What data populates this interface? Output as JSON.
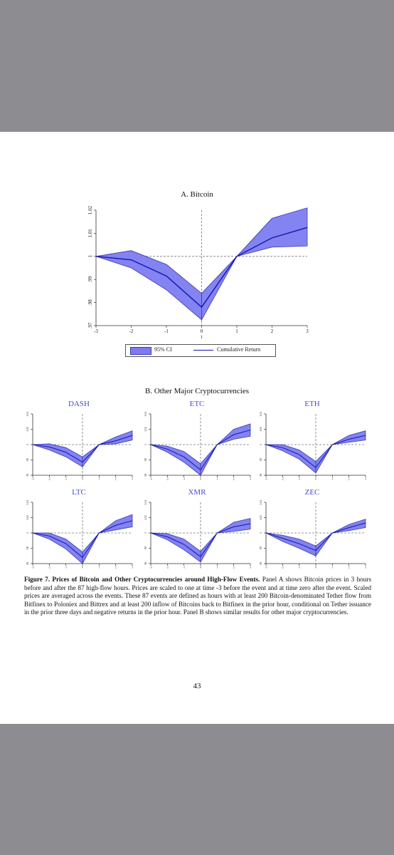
{
  "panel_a": {
    "title": "A. Bitcoin",
    "xlabel": "t",
    "legend": {
      "ci": "95% CI",
      "line": "Cumulative Return"
    }
  },
  "panel_b": {
    "title": "B. Other Major Cryptocurrencies"
  },
  "caption": {
    "bold": "Figure 7. Prices of Bitcoin and Other Cryptocurrencies around High-Flow Events.",
    "text": " Panel A shows Bitcoin prices in 3 hours before and after the 87 high-flow hours. Prices are scaled to one at time -3 before the event and at time zero after the event. Scaled prices are averaged across the events. These 87 events are defined as hours with at least 200 Bitcoin-denominated Tether flow from Bitfinex to Poloniex and Bittrex and at least 200 inflow of Bitcoins back to Bitfinex in the prior hour, conditional on Tether issuance in the prior three days and negative returns in the prior hour. Panel B shows similar results for other major cryptocurrencies."
  },
  "page_number": "43",
  "colors": {
    "band": "#7c7cf0",
    "band_edge": "#3a3ab0",
    "line": "#1414b4",
    "ref": "#777777"
  },
  "chart_data": [
    {
      "type": "area",
      "title": "A. Bitcoin",
      "xlabel": "t",
      "x": [
        -3,
        -2,
        -1,
        0,
        1,
        2,
        3
      ],
      "xlim": [
        -3,
        3
      ],
      "ylim": [
        0.97,
        1.02
      ],
      "yticks": [
        ".97",
        ".98",
        ".99",
        "1",
        "1.01",
        "1.02"
      ],
      "ytick_values": [
        0.97,
        0.98,
        0.99,
        1.0,
        1.01,
        1.02
      ],
      "xticks": [
        "-3",
        "-2",
        "-1",
        "0",
        "1",
        "2",
        "3"
      ],
      "series": [
        {
          "name": "Cumulative Return",
          "values": [
            1.0,
            0.9985,
            0.9915,
            0.978,
            1.0,
            1.008,
            1.0125
          ]
        },
        {
          "name": "95% CI",
          "lower": [
            1.0,
            0.995,
            0.9855,
            0.9725,
            1.0,
            1.004,
            1.0045
          ],
          "upper": [
            1.0,
            1.0025,
            0.9965,
            0.984,
            1.0,
            1.0165,
            1.021
          ]
        }
      ],
      "legend": "bottom",
      "ref_lines": {
        "x": 0,
        "y": 1
      }
    },
    {
      "type": "area",
      "title": "DASH",
      "x": [
        -3,
        -2,
        -1,
        0,
        1,
        2,
        3
      ],
      "ylim": [
        0.96,
        1.04
      ],
      "yticks": [
        ".96",
        ".98",
        "1",
        "1.02",
        "1.04"
      ],
      "xticks": [
        "-3",
        "-2",
        "-1",
        "0",
        "1",
        "2",
        "3"
      ],
      "line": [
        1.0,
        0.997,
        0.99,
        0.977,
        1.0,
        1.005,
        1.012
      ],
      "lower": [
        1.0,
        0.993,
        0.984,
        0.971,
        1.0,
        1.001,
        1.006
      ],
      "upper": [
        1.0,
        1.001,
        0.996,
        0.984,
        1.0,
        1.01,
        1.018
      ]
    },
    {
      "type": "area",
      "title": "ETC",
      "x": [
        -3,
        -2,
        -1,
        0,
        1,
        2,
        3
      ],
      "ylim": [
        0.96,
        1.04
      ],
      "yticks": [
        ".96",
        ".98",
        "1",
        "1.02",
        "1.04"
      ],
      "xticks": [
        "-3",
        "-2",
        "-1",
        "0",
        "1",
        "2",
        "3"
      ],
      "line": [
        1.0,
        0.994,
        0.984,
        0.967,
        1.0,
        1.013,
        1.019
      ],
      "lower": [
        1.0,
        0.99,
        0.977,
        0.96,
        1.0,
        1.007,
        1.011
      ],
      "upper": [
        1.0,
        0.998,
        0.991,
        0.975,
        1.0,
        1.02,
        1.027
      ]
    },
    {
      "type": "area",
      "title": "ETH",
      "x": [
        -3,
        -2,
        -1,
        0,
        1,
        2,
        3
      ],
      "ylim": [
        0.96,
        1.04
      ],
      "yticks": [
        ".96",
        ".98",
        "1",
        "1.02",
        "1.04"
      ],
      "xticks": [
        "-3",
        "-2",
        "-1",
        "0",
        "1",
        "2",
        "3"
      ],
      "line": [
        1.0,
        0.996,
        0.987,
        0.97,
        1.0,
        1.007,
        1.012
      ],
      "lower": [
        1.0,
        0.992,
        0.981,
        0.963,
        1.0,
        1.003,
        1.006
      ],
      "upper": [
        1.0,
        1.0,
        0.993,
        0.978,
        1.0,
        1.012,
        1.018
      ]
    },
    {
      "type": "area",
      "title": "LTC",
      "x": [
        -3,
        -2,
        -1,
        0,
        1,
        2,
        3
      ],
      "ylim": [
        0.96,
        1.04
      ],
      "yticks": [
        ".96",
        ".98",
        "1",
        "1.02",
        "1.04"
      ],
      "xticks": [
        "-3",
        "-2",
        "-1",
        "0",
        "1",
        "2",
        "3"
      ],
      "line": [
        1.0,
        0.996,
        0.986,
        0.968,
        1.0,
        1.01,
        1.016
      ],
      "lower": [
        1.0,
        0.992,
        0.979,
        0.96,
        1.0,
        1.004,
        1.008
      ],
      "upper": [
        1.0,
        1.0,
        0.992,
        0.975,
        1.0,
        1.016,
        1.024
      ]
    },
    {
      "type": "area",
      "title": "XMR",
      "x": [
        -3,
        -2,
        -1,
        0,
        1,
        2,
        3
      ],
      "ylim": [
        0.96,
        1.04
      ],
      "yticks": [
        ".96",
        ".98",
        "1",
        "1.02",
        "1.04"
      ],
      "xticks": [
        "-3",
        "-2",
        "-1",
        "0",
        "1",
        "2",
        "3"
      ],
      "line": [
        1.0,
        0.995,
        0.985,
        0.969,
        1.0,
        1.008,
        1.012
      ],
      "lower": [
        1.0,
        0.991,
        0.978,
        0.962,
        1.0,
        1.002,
        1.005
      ],
      "upper": [
        1.0,
        0.999,
        0.992,
        0.976,
        1.0,
        1.014,
        1.019
      ]
    },
    {
      "type": "area",
      "title": "ZEC",
      "x": [
        -3,
        -2,
        -1,
        0,
        1,
        2,
        3
      ],
      "ylim": [
        0.96,
        1.04
      ],
      "yticks": [
        ".96",
        ".98",
        "1",
        "1.02",
        "1.04"
      ],
      "xticks": [
        "-3",
        "-2",
        "-1",
        "0",
        "1",
        "2",
        "3"
      ],
      "line": [
        1.0,
        0.993,
        0.986,
        0.977,
        1.0,
        1.007,
        1.013
      ],
      "lower": [
        1.0,
        0.989,
        0.98,
        0.97,
        1.0,
        1.003,
        1.007
      ],
      "upper": [
        1.0,
        0.997,
        0.992,
        0.983,
        1.0,
        1.011,
        1.018
      ]
    }
  ]
}
